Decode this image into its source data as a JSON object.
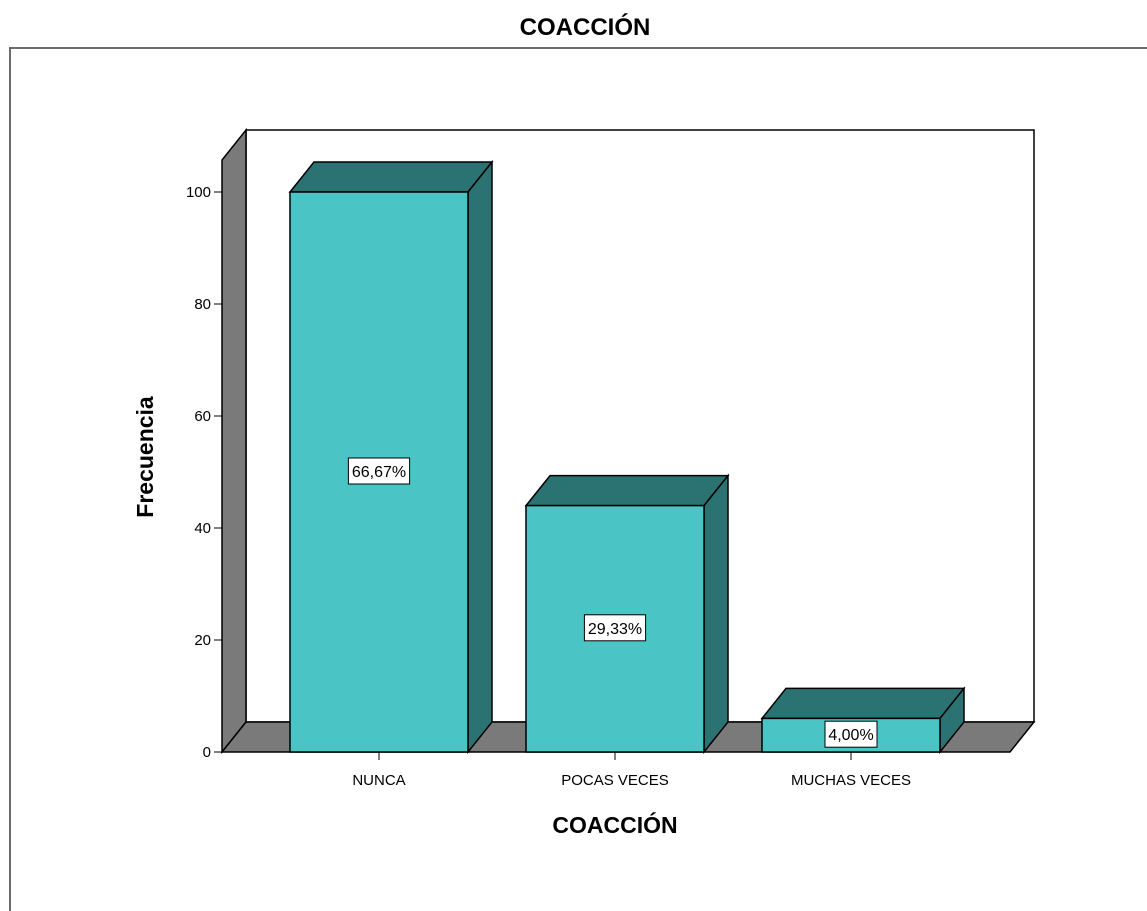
{
  "chart_data": {
    "type": "bar",
    "title": "COACCIÓN",
    "xlabel": "COACCIÓN",
    "ylabel": "Frecuencia",
    "categories": [
      "NUNCA",
      "POCAS VECES",
      "MUCHAS VECES"
    ],
    "values": [
      100,
      44,
      6
    ],
    "data_labels": [
      "66,67%",
      "29,33%",
      "4,00%"
    ],
    "ylim": [
      0,
      100
    ],
    "yticks": [
      0,
      20,
      40,
      60,
      80,
      100
    ],
    "grid": false,
    "three_d": true,
    "colors": {
      "bar_front": "#4BC4C6",
      "bar_side": "#2A7372",
      "wall": "#7A7A7A",
      "border": "#000000"
    }
  }
}
